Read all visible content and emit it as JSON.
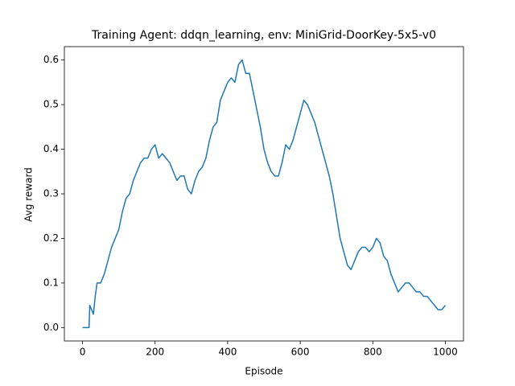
{
  "chart_data": {
    "type": "line",
    "title": "Training Agent: ddqn_learning, env: MiniGrid-DoorKey-5x5-v0",
    "x_label": "Episode",
    "y_label": "Avg reward",
    "x": [
      0,
      10,
      18,
      20,
      25,
      30,
      35,
      40,
      50,
      60,
      70,
      80,
      90,
      100,
      110,
      120,
      130,
      140,
      150,
      160,
      170,
      180,
      190,
      200,
      210,
      220,
      230,
      240,
      250,
      260,
      270,
      280,
      290,
      300,
      310,
      320,
      330,
      340,
      350,
      360,
      370,
      380,
      390,
      400,
      410,
      420,
      430,
      440,
      450,
      460,
      470,
      480,
      490,
      500,
      510,
      520,
      530,
      540,
      550,
      560,
      570,
      580,
      590,
      600,
      610,
      620,
      630,
      640,
      650,
      660,
      670,
      680,
      690,
      700,
      710,
      720,
      730,
      740,
      750,
      760,
      770,
      780,
      790,
      800,
      810,
      820,
      830,
      840,
      850,
      860,
      870,
      880,
      890,
      900,
      910,
      920,
      930,
      940,
      950,
      960,
      970,
      980,
      990,
      1000
    ],
    "series": [
      {
        "name": "Avg reward",
        "color": "#1f77b4",
        "values": [
          0,
          0,
          0,
          0.05,
          0.04,
          0.03,
          0.07,
          0.1,
          0.1,
          0.12,
          0.15,
          0.18,
          0.2,
          0.22,
          0.26,
          0.29,
          0.3,
          0.33,
          0.35,
          0.37,
          0.38,
          0.38,
          0.4,
          0.41,
          0.38,
          0.39,
          0.38,
          0.37,
          0.35,
          0.33,
          0.34,
          0.34,
          0.31,
          0.3,
          0.33,
          0.35,
          0.36,
          0.38,
          0.42,
          0.45,
          0.46,
          0.51,
          0.53,
          0.55,
          0.56,
          0.55,
          0.59,
          0.6,
          0.57,
          0.57,
          0.53,
          0.49,
          0.45,
          0.4,
          0.37,
          0.35,
          0.34,
          0.34,
          0.37,
          0.41,
          0.4,
          0.42,
          0.45,
          0.48,
          0.51,
          0.5,
          0.48,
          0.46,
          0.43,
          0.4,
          0.37,
          0.34,
          0.3,
          0.25,
          0.2,
          0.17,
          0.14,
          0.13,
          0.15,
          0.17,
          0.18,
          0.18,
          0.17,
          0.18,
          0.2,
          0.19,
          0.16,
          0.15,
          0.12,
          0.1,
          0.08,
          0.09,
          0.1,
          0.1,
          0.09,
          0.08,
          0.08,
          0.07,
          0.07,
          0.06,
          0.05,
          0.04,
          0.04,
          0.05
        ]
      }
    ],
    "xlim": [
      -50,
      1050
    ],
    "ylim": [
      -0.03,
      0.63
    ],
    "xticks": [
      0,
      200,
      400,
      600,
      800,
      1000
    ],
    "yticks": [
      {
        "value": 0,
        "label": "0.0"
      },
      0.1,
      0.2,
      0.3,
      0.4,
      0.5,
      0.6
    ],
    "grid": false
  }
}
